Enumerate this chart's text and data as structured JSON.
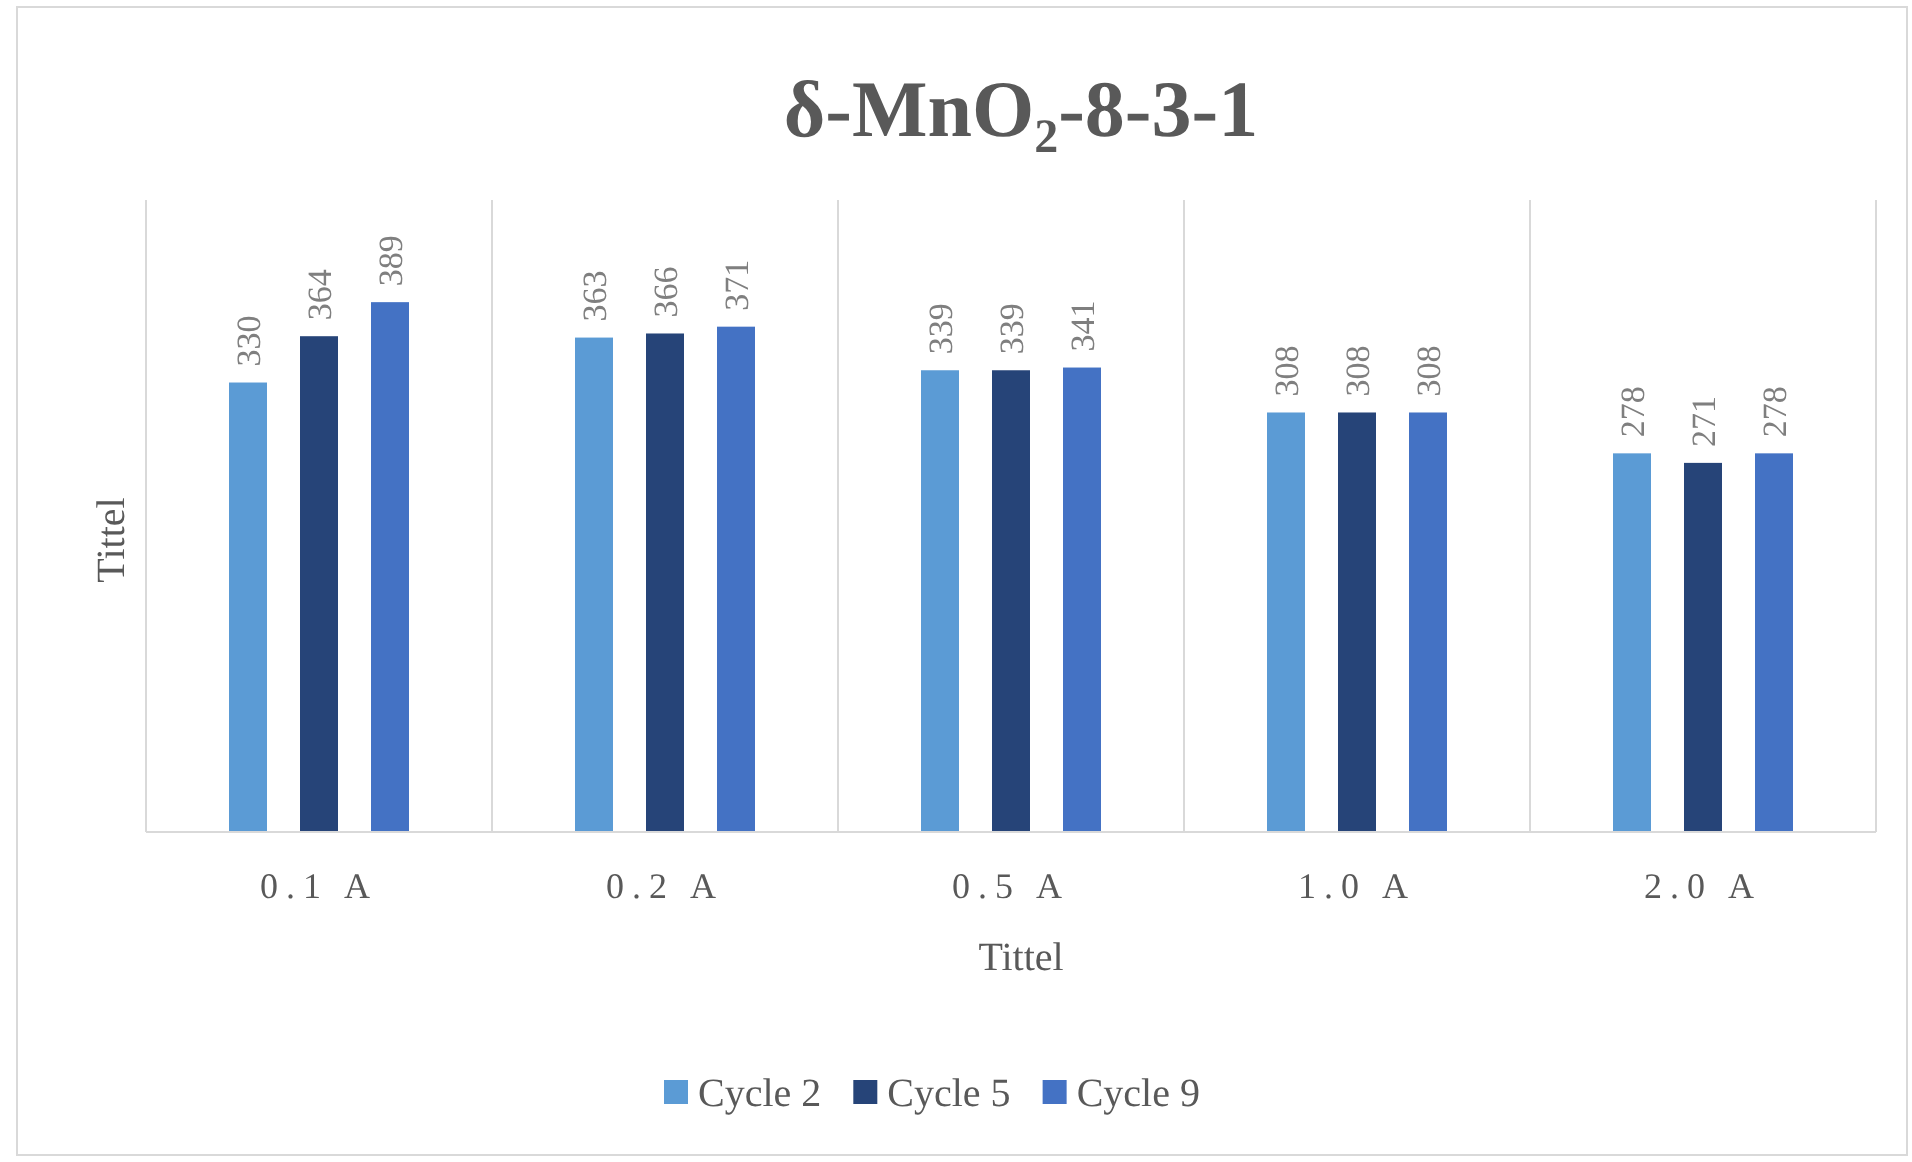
{
  "chart_data": {
    "type": "bar",
    "title": "δ-MnO₂-8-3-1",
    "xlabel": "Tittel",
    "ylabel": "Tittel",
    "categories": [
      "0.1 A",
      "0.2 A",
      "0.5 A",
      "1.0 A",
      "2.0 A"
    ],
    "series": [
      {
        "name": "Cycle 2",
        "color": "#5b9bd5",
        "values": [
          330,
          363,
          339,
          308,
          278
        ]
      },
      {
        "name": "Cycle 5",
        "color": "#264478",
        "values": [
          364,
          366,
          339,
          308,
          271
        ]
      },
      {
        "name": "Cycle 9",
        "color": "#4472c4",
        "values": [
          389,
          371,
          341,
          308,
          278
        ]
      }
    ],
    "ylim": [
      0,
      464
    ],
    "tick_labels": "x",
    "data_labels": true,
    "grid": "x",
    "legend": "bottom"
  }
}
